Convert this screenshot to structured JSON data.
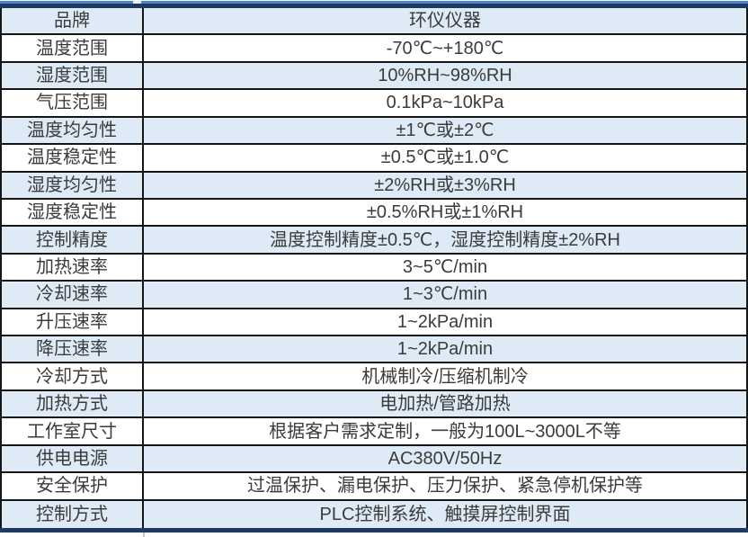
{
  "table": {
    "brand_value": "环仪仪器",
    "rows": [
      {
        "label": "品牌",
        "value": "环仪仪器"
      },
      {
        "label": "温度范围",
        "value": "-70℃~+180℃"
      },
      {
        "label": "湿度范围",
        "value": "10%RH~98%RH"
      },
      {
        "label": "气压范围",
        "value": "0.1kPa~10kPa"
      },
      {
        "label": "温度均匀性",
        "value": "±1℃或±2℃"
      },
      {
        "label": "温度稳定性",
        "value": "±0.5℃或±1.0℃"
      },
      {
        "label": "湿度均匀性",
        "value": "±2%RH或±3%RH"
      },
      {
        "label": "湿度稳定性",
        "value": "±0.5%RH或±1%RH"
      },
      {
        "label": "控制精度",
        "value": "温度控制精度±0.5℃，湿度控制精度±2%RH"
      },
      {
        "label": "加热速率",
        "value": "3~5℃/min"
      },
      {
        "label": "冷却速率",
        "value": "1~3℃/min"
      },
      {
        "label": "升压速率",
        "value": "1~2kPa/min"
      },
      {
        "label": "降压速率",
        "value": "1~2kPa/min"
      },
      {
        "label": "冷却方式",
        "value": "机械制冷/压缩机制冷"
      },
      {
        "label": "加热方式",
        "value": "电加热/管路加热"
      },
      {
        "label": "工作室尺寸",
        "value": "根据客户需求定制，一般为100L~3000L不等"
      },
      {
        "label": "供电电源",
        "value": "AC380V/50Hz"
      },
      {
        "label": "安全保护",
        "value": "过温保护、漏电保护、压力保护、紧急停机保护等"
      },
      {
        "label": "控制方式",
        "value": "PLC控制系统、触摸屏控制界面"
      }
    ]
  },
  "colors": {
    "row_alt_bg": "#DEEBF7",
    "heavy_border": "#1F3864",
    "accent_line": "#4C86C8",
    "grid_line": "#161616",
    "text_color": "#3B3B3B"
  }
}
